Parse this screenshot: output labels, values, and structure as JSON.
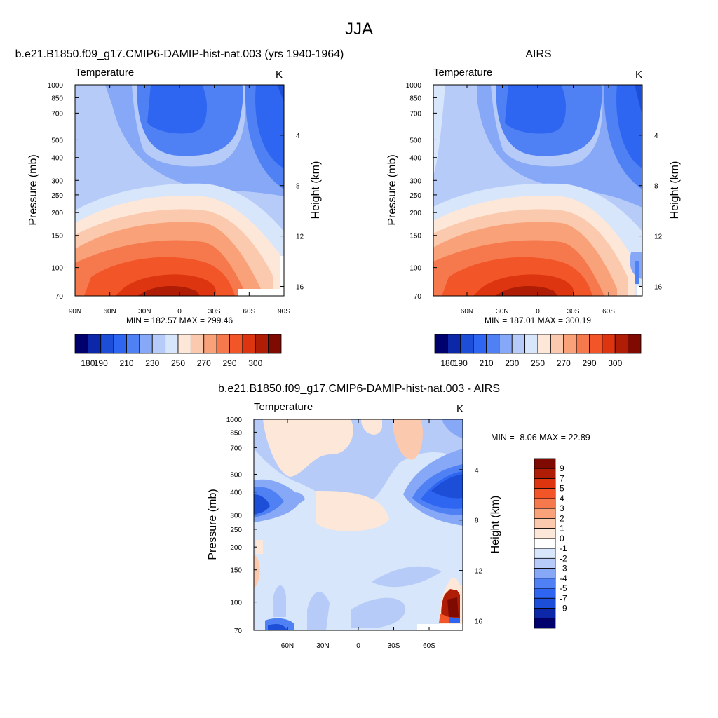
{
  "figure": {
    "title": "JJA"
  },
  "chart_data": [
    {
      "type": "heatmap",
      "title": "b.e21.B1850.f09_g17.CMIP6-DAMIP-hist-nat.003 (yrs 1940-1964)",
      "left_string": "Temperature",
      "right_string": "K",
      "ylabel": "Pressure (mb)",
      "ylabel_right": "Height (km)",
      "x_ticks": [
        "90N",
        "60N",
        "30N",
        "0",
        "30S",
        "60S",
        "90S"
      ],
      "x_tick_lat": [
        90,
        60,
        30,
        0,
        -30,
        -60,
        -90
      ],
      "xlim": [
        90,
        -90
      ],
      "y_ticks": [
        "70",
        "100",
        "150",
        "200",
        "250",
        "300",
        "400",
        "500",
        "700",
        "850",
        "1000"
      ],
      "y_tick_values": [
        70,
        100,
        150,
        200,
        250,
        300,
        400,
        500,
        700,
        850,
        1000
      ],
      "ylim": [
        1000,
        70
      ],
      "y_scale": "log",
      "height_ticks": [
        "16",
        "12",
        "8",
        "4"
      ],
      "height_tick_km": [
        16,
        12,
        8,
        4
      ],
      "stats": "MIN = 182.57  MAX = 299.46",
      "min": 182.57,
      "max": 299.46,
      "colorbar_labels": [
        "180",
        "190",
        "210",
        "230",
        "250",
        "270",
        "290",
        "300"
      ],
      "colorbar_label_positions": [
        1,
        2,
        4,
        6,
        8,
        10,
        12,
        14
      ],
      "colorbar_colors": [
        "#01016e",
        "#0c28a8",
        "#1c4ed8",
        "#2e66f2",
        "#4f80f4",
        "#86a8f6",
        "#b6cbf8",
        "#d8e6fb",
        "#fde7d8",
        "#fbc9ad",
        "#f9a27a",
        "#f6794e",
        "#f25527",
        "#dc3510",
        "#b01d06",
        "#7e0a02"
      ]
    },
    {
      "type": "heatmap",
      "title": "AIRS",
      "left_string": "Temperature",
      "right_string": "K",
      "ylabel": "Pressure (mb)",
      "ylabel_right": "Height (km)",
      "x_ticks": [
        "60N",
        "30N",
        "0",
        "30S",
        "60S"
      ],
      "x_tick_lat": [
        60,
        30,
        0,
        -30,
        -60
      ],
      "xlim": [
        88.5,
        -88.5
      ],
      "y_ticks": [
        "70",
        "100",
        "150",
        "200",
        "250",
        "300",
        "400",
        "500",
        "700",
        "850",
        "1000"
      ],
      "y_tick_values": [
        70,
        100,
        150,
        200,
        250,
        300,
        400,
        500,
        700,
        850,
        1000
      ],
      "ylim": [
        1000,
        70
      ],
      "y_scale": "log",
      "height_ticks": [
        "16",
        "12",
        "8",
        "4"
      ],
      "height_tick_km": [
        16,
        12,
        8,
        4
      ],
      "stats": "MIN = 187.01  MAX = 300.19",
      "min": 187.01,
      "max": 300.19,
      "colorbar_labels": [
        "180",
        "190",
        "210",
        "230",
        "250",
        "270",
        "290",
        "300"
      ],
      "colorbar_label_positions": [
        1,
        2,
        4,
        6,
        8,
        10,
        12,
        14
      ],
      "colorbar_colors": [
        "#01016e",
        "#0c28a8",
        "#1c4ed8",
        "#2e66f2",
        "#4f80f4",
        "#86a8f6",
        "#b6cbf8",
        "#d8e6fb",
        "#fde7d8",
        "#fbc9ad",
        "#f9a27a",
        "#f6794e",
        "#f25527",
        "#dc3510",
        "#b01d06",
        "#7e0a02"
      ]
    },
    {
      "type": "heatmap",
      "title": "b.e21.B1850.f09_g17.CMIP6-DAMIP-hist-nat.003 - AIRS",
      "left_string": "Temperature",
      "right_string": "K",
      "ylabel": "Pressure (mb)",
      "ylabel_right": "Height (km)",
      "x_ticks": [
        "60N",
        "30N",
        "0",
        "30S",
        "60S"
      ],
      "x_tick_lat": [
        60,
        30,
        0,
        -30,
        -60
      ],
      "xlim": [
        88.5,
        -88.5
      ],
      "y_ticks": [
        "70",
        "100",
        "150",
        "200",
        "250",
        "300",
        "400",
        "500",
        "700",
        "850",
        "1000"
      ],
      "y_tick_values": [
        70,
        100,
        150,
        200,
        250,
        300,
        400,
        500,
        700,
        850,
        1000
      ],
      "ylim": [
        1000,
        70
      ],
      "y_scale": "log",
      "height_ticks": [
        "16",
        "12",
        "8",
        "4"
      ],
      "height_tick_km": [
        16,
        12,
        8,
        4
      ],
      "stats": "MIN =  -8.06  MAX =  22.89",
      "min": -8.06,
      "max": 22.89,
      "colorbar_labels": [
        "9",
        "7",
        "5",
        "4",
        "3",
        "2",
        "1",
        "0",
        "-1",
        "-2",
        "-3",
        "-4",
        "-5",
        "-7",
        "-9"
      ],
      "colorbar_colors": [
        "#7e0a02",
        "#b01d06",
        "#dc3510",
        "#f25527",
        "#f6794e",
        "#f9a27a",
        "#fbc9ad",
        "#fde7d8",
        "#ffffff",
        "#d8e6fb",
        "#b6cbf8",
        "#86a8f6",
        "#4f80f4",
        "#2e66f2",
        "#1c4ed8",
        "#0c28a8",
        "#01016e"
      ]
    }
  ]
}
